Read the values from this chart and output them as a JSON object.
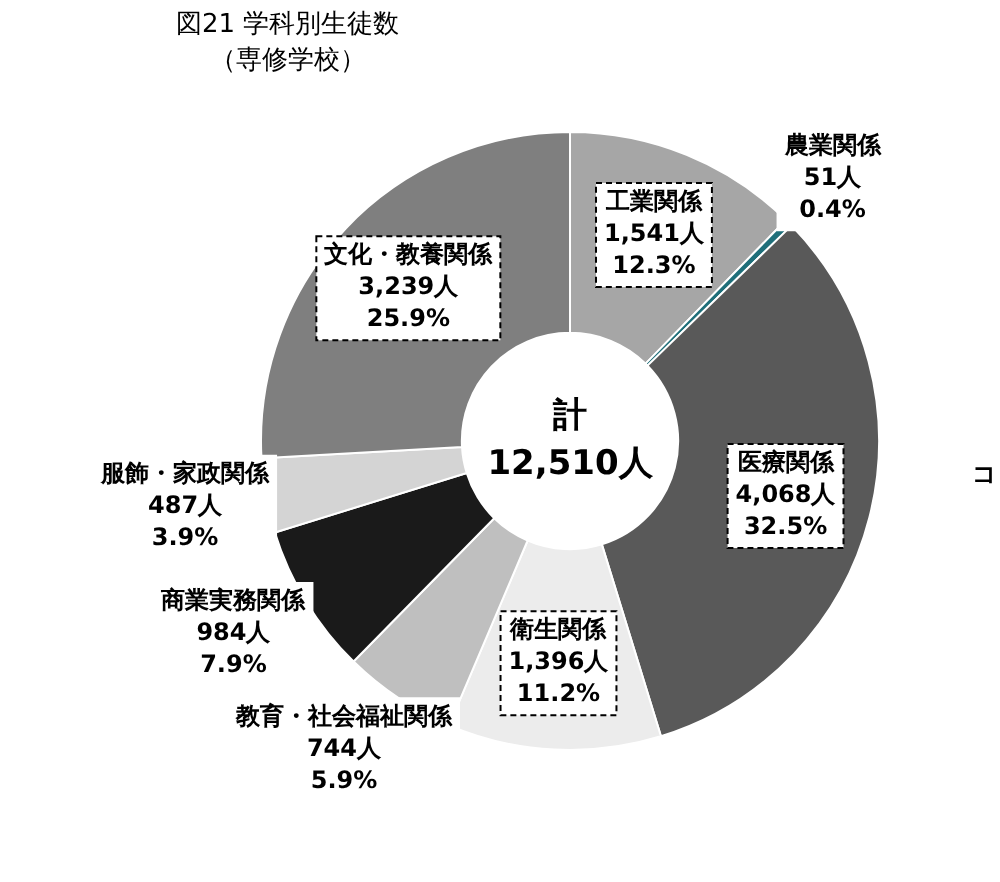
{
  "chart_data": {
    "type": "donut",
    "title": "図21 学科別生徒数",
    "subtitle": "（専修学校）",
    "categories": [
      "工業関係",
      "農業関係",
      "医療関係",
      "衛生関係",
      "教育・社会福祉関係",
      "商業実務関係",
      "服飾・家政関係",
      "文化・教養関係"
    ],
    "values": [
      1541,
      51,
      4068,
      1396,
      744,
      984,
      487,
      3239
    ],
    "value_labels": [
      "1,541人\n12.3%",
      "51人\n0.4%",
      "4,068人\n32.5%",
      "1,396人\n11.2%",
      "744人\n5.9%",
      "984人\n7.9%",
      "487人\n3.9%",
      "3,239人\n25.9%"
    ],
    "colors": [
      "#a6a6a6",
      "#1f6f7a",
      "#595959",
      "#ececec",
      "#bfbfbf",
      "#1a1a1a",
      "#d4d4d4",
      "#7f7f7f"
    ],
    "annotations": [
      "計\n12,510人",
      "コ"
    ],
    "legend": false
  }
}
